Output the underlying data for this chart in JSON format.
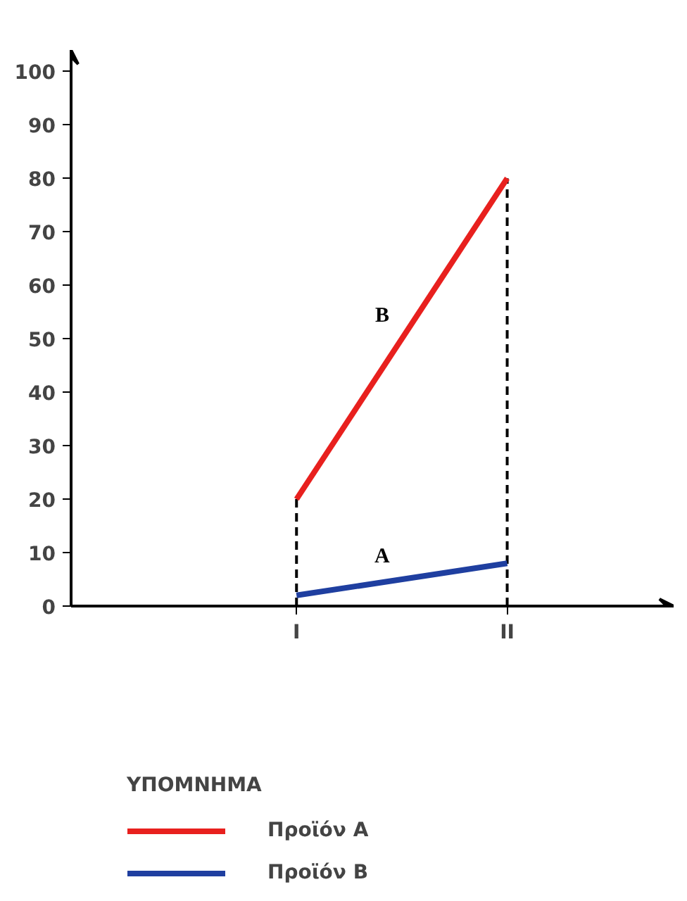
{
  "chart_data": {
    "type": "line",
    "categories": [
      "I",
      "II"
    ],
    "series": [
      {
        "name": "Προϊόν A",
        "color": "#e8201e",
        "values": [
          20,
          80
        ]
      },
      {
        "name": "Προϊόν B",
        "color": "#1f3fa0",
        "values": [
          2,
          8
        ]
      }
    ],
    "ylim": [
      0,
      104
    ],
    "yticks": [
      0,
      10,
      20,
      30,
      40,
      50,
      60,
      70,
      80,
      90,
      100
    ],
    "annotations": [
      "B",
      "A"
    ],
    "ref_lines": [
      {
        "axis": "x",
        "value": "I",
        "line_style": "dashed",
        "color": "#000000"
      },
      {
        "axis": "x",
        "value": "II",
        "line_style": "dashed",
        "color": "#000000"
      }
    ],
    "legend": "bottom",
    "legend_title": "ΥΠΟΜΝΗΜΑ",
    "grid": false,
    "marker": "none",
    "line_style": "solid"
  }
}
